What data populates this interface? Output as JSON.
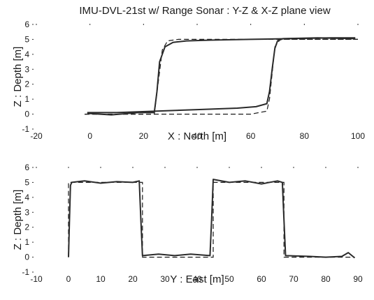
{
  "title": "IMU-DVL-21st w/ Range Sonar : Y-Z & X-Z plane view",
  "chart_data": [
    {
      "type": "line",
      "xlabel": "X : North [m]",
      "ylabel": "Z : Depth [m]",
      "xlim": [
        -20,
        100
      ],
      "ylim": [
        -1,
        6
      ],
      "xticks": [
        "-20",
        "0",
        "20",
        "40",
        "60",
        "80",
        "100"
      ],
      "yticks": [
        "-1",
        "0",
        "1",
        "2",
        "3",
        "4",
        "5",
        "6"
      ],
      "grid": false,
      "series": [
        {
          "style": "dashed",
          "x": [
            -2,
            24,
            27,
            29,
            33,
            100
          ],
          "y": [
            0,
            0,
            4.3,
            4.9,
            5.0,
            5.0
          ]
        },
        {
          "style": "dashed",
          "x": [
            -2,
            60,
            66,
            67,
            69,
            71,
            100
          ],
          "y": [
            0,
            0,
            0.2,
            1.0,
            4.5,
            5.0,
            5.0
          ]
        },
        {
          "style": "solid",
          "x": [
            -1,
            8,
            18,
            24,
            25,
            26,
            28,
            31,
            36,
            45,
            60,
            75,
            90,
            99
          ],
          "y": [
            0.05,
            -0.05,
            0.1,
            0.1,
            1.5,
            3.5,
            4.5,
            4.8,
            4.9,
            4.95,
            5.0,
            5.05,
            5.1,
            5.1
          ]
        },
        {
          "style": "solid",
          "x": [
            -1,
            10,
            25,
            40,
            55,
            62,
            66,
            67,
            68,
            69,
            70,
            72,
            85,
            99
          ],
          "y": [
            0.1,
            0.1,
            0.2,
            0.3,
            0.4,
            0.5,
            0.7,
            1.5,
            3.0,
            4.4,
            4.9,
            5.05,
            5.1,
            5.05
          ]
        }
      ]
    },
    {
      "type": "line",
      "xlabel": "Y : East [m]",
      "ylabel": "Z : Depth [m]",
      "xlim": [
        -10,
        90
      ],
      "ylim": [
        -1,
        6
      ],
      "xticks": [
        "-10",
        "0",
        "10",
        "20",
        "30",
        "40",
        "50",
        "60",
        "70",
        "80",
        "90"
      ],
      "yticks": [
        "-1",
        "0",
        "1",
        "2",
        "3",
        "4",
        "5",
        "6"
      ],
      "grid": false,
      "series": [
        {
          "style": "dashed",
          "x": [
            0,
            0,
            23,
            23,
            45,
            45,
            67,
            67,
            89
          ],
          "y": [
            0,
            5.0,
            5.0,
            0,
            0,
            5.0,
            5.0,
            0,
            0
          ]
        },
        {
          "style": "solid",
          "x": [
            0,
            0.3,
            0.6,
            1,
            5,
            10,
            15,
            20,
            22,
            22.5,
            23,
            28,
            33,
            38,
            44,
            44.5,
            45,
            50,
            55,
            60,
            65,
            66.5,
            67,
            67.5,
            75,
            80,
            85,
            87,
            89
          ],
          "y": [
            0,
            2.5,
            4.8,
            5.0,
            5.1,
            4.95,
            5.05,
            5.0,
            5.1,
            2.5,
            0.1,
            0.2,
            0.1,
            0.2,
            0.1,
            2.5,
            5.2,
            5.0,
            5.1,
            4.9,
            5.1,
            5.0,
            2.5,
            0.1,
            0.05,
            0.0,
            0.05,
            0.3,
            -0.05
          ]
        }
      ]
    }
  ]
}
